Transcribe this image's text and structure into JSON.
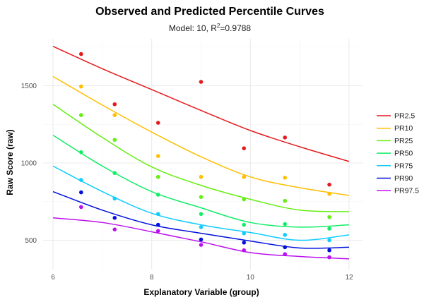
{
  "chart_data": {
    "type": "line",
    "title": "Observed and Predicted Percentile Curves",
    "subtitle_prefix": "Model: 10, R",
    "subtitle_sup": "2",
    "subtitle_suffix": "=0.9788",
    "xlabel": "Explanatory Variable (group)",
    "ylabel": "Raw Score (raw)",
    "xlim": [
      6,
      12
    ],
    "ylim": [
      330,
      1780
    ],
    "x_ticks": [
      6,
      8,
      10,
      12
    ],
    "x_minor_ticks": [
      7,
      9,
      11
    ],
    "y_ticks": [
      500,
      1000,
      1500
    ],
    "y_minor_ticks": [
      750,
      1250,
      1750
    ],
    "grid": true,
    "legend_position": "right",
    "curve_x": [
      6,
      7,
      8,
      9,
      10,
      11,
      12
    ],
    "point_x": [
      6.57,
      7.25,
      8.13,
      9.0,
      9.87,
      10.7,
      11.6
    ],
    "series": [
      {
        "name": "PR2.5",
        "color": "#e41a1c",
        "curve": [
          1755,
          1610,
          1475,
          1340,
          1210,
          1105,
          1010
        ],
        "points": [
          1705,
          1380,
          1260,
          1525,
          1095,
          1165,
          860
        ]
      },
      {
        "name": "PR10",
        "color": "#ffbf00",
        "curve": [
          1560,
          1375,
          1200,
          1040,
          910,
          840,
          790
        ],
        "points": [
          1495,
          1310,
          1045,
          910,
          910,
          905,
          800
        ]
      },
      {
        "name": "PR25",
        "color": "#66ee11",
        "curve": [
          1380,
          1165,
          975,
          855,
          765,
          695,
          685
        ],
        "points": [
          1310,
          1150,
          910,
          780,
          765,
          755,
          650
        ]
      },
      {
        "name": "PR50",
        "color": "#11ee66",
        "curve": [
          1180,
          980,
          815,
          710,
          615,
          585,
          600
        ],
        "points": [
          1070,
          935,
          795,
          670,
          600,
          605,
          575
        ]
      },
      {
        "name": "PR75",
        "color": "#11ccff",
        "curve": [
          980,
          815,
          675,
          600,
          550,
          500,
          535
        ],
        "points": [
          890,
          770,
          670,
          585,
          545,
          535,
          500
        ]
      },
      {
        "name": "PR90",
        "color": "#0011dd",
        "curve": [
          815,
          695,
          600,
          545,
          495,
          450,
          455
        ],
        "points": [
          810,
          645,
          600,
          505,
          485,
          455,
          435
        ]
      },
      {
        "name": "PR97.5",
        "color": "#bb11ee",
        "curve": [
          645,
          615,
          555,
          490,
          420,
          395,
          380
        ],
        "points": [
          715,
          570,
          560,
          470,
          435,
          410,
          390
        ]
      }
    ]
  }
}
